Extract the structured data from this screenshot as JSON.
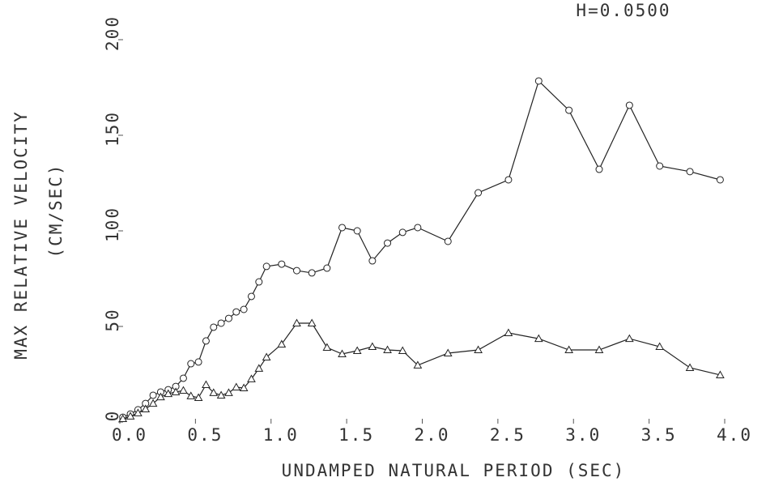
{
  "chart_data": {
    "type": "line",
    "title": "H=0.0500",
    "xlabel": "UNDAMPED NATURAL PERIOD (SEC)",
    "ylabel": [
      "MAX RELATIVE VELOCITY",
      "(CM/SEC)"
    ],
    "xlim": [
      0,
      4
    ],
    "ylim": [
      0,
      200
    ],
    "xticks": [
      {
        "value": 0,
        "label": "0.0"
      },
      0.5,
      {
        "value": 1,
        "label": "1.0"
      },
      1.5,
      {
        "value": 2,
        "label": "2.0"
      },
      2.5,
      {
        "value": 3,
        "label": "3.0"
      },
      3.5,
      {
        "value": 4,
        "label": "4.0"
      }
    ],
    "yticks": [
      0,
      50,
      100,
      150,
      200
    ],
    "series": [
      {
        "marker": "circle",
        "color": "#222222",
        "x": [
          0.02,
          0.07,
          0.12,
          0.17,
          0.22,
          0.27,
          0.32,
          0.37,
          0.42,
          0.47,
          0.52,
          0.57,
          0.62,
          0.67,
          0.72,
          0.77,
          0.82,
          0.87,
          0.92,
          0.97,
          1.07,
          1.17,
          1.27,
          1.37,
          1.47,
          1.57,
          1.67,
          1.77,
          1.87,
          1.97,
          2.17,
          2.37,
          2.57,
          2.77,
          2.97,
          3.17,
          3.37,
          3.57,
          3.77,
          3.97
        ],
        "values": [
          2.5,
          4.2,
          6.4,
          9.7,
          14,
          15.7,
          16.9,
          18.6,
          22.9,
          30.5,
          31.4,
          42.4,
          49.6,
          51.7,
          54.2,
          57.6,
          58.9,
          65.7,
          73.3,
          81.4,
          82.6,
          79.2,
          78,
          80.5,
          101.7,
          100,
          84.3,
          93.6,
          99.2,
          101.7,
          94.5,
          119.9,
          126.7,
          178.4,
          163.1,
          132.2,
          165.7,
          133.9,
          131,
          126.7
        ]
      },
      {
        "marker": "triangle",
        "color": "#222222",
        "x": [
          0.02,
          0.07,
          0.12,
          0.17,
          0.22,
          0.27,
          0.32,
          0.37,
          0.42,
          0.47,
          0.52,
          0.57,
          0.62,
          0.67,
          0.72,
          0.77,
          0.82,
          0.87,
          0.92,
          0.97,
          1.07,
          1.17,
          1.27,
          1.37,
          1.47,
          1.57,
          1.67,
          1.77,
          1.87,
          1.97,
          2.17,
          2.37,
          2.57,
          2.77,
          2.97,
          3.17,
          3.37,
          3.57,
          3.77,
          3.97
        ],
        "values": [
          1.7,
          3,
          4.7,
          6.8,
          9.7,
          13.1,
          14.8,
          15.7,
          16.5,
          13.6,
          12.7,
          19.5,
          15.3,
          14,
          15.3,
          18.2,
          17.8,
          22.5,
          28,
          33.9,
          40.7,
          51.7,
          51.7,
          39,
          35.6,
          37.3,
          39.4,
          37.7,
          37.3,
          29.7,
          36,
          37.7,
          46.6,
          43.6,
          37.7,
          37.7,
          43.6,
          39.4,
          28.4,
          24.6
        ]
      }
    ]
  }
}
